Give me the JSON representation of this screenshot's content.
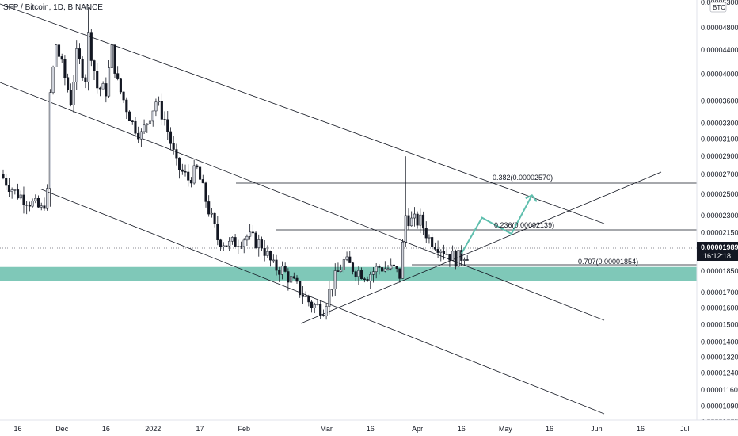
{
  "header": {
    "symbol_title": "SFP / Bitcoin, 1D, BINANCE",
    "currency_badge": "BTC"
  },
  "price_axis": {
    "ticks": [
      "0.00005300",
      "0.00004800",
      "0.00004400",
      "0.00004000",
      "0.00003600",
      "0.00003300",
      "0.00003100",
      "0.00002900",
      "0.00002700",
      "0.00002500",
      "0.00002300",
      "0.00002150",
      "0.00001989",
      "0.00001850",
      "0.00001700",
      "0.00001600",
      "0.00001500",
      "0.00001400",
      "0.00001320",
      "0.00001240",
      "0.00001160",
      "0.00001090",
      "0.00001025"
    ],
    "current_price": "0.00001989",
    "countdown": "16:12:18"
  },
  "time_axis": {
    "ticks": [
      "16",
      "Dec",
      "16",
      "2022",
      "17",
      "Feb",
      "Mar",
      "16",
      "Apr",
      "16",
      "May",
      "16",
      "Jun",
      "16",
      "Jul"
    ]
  },
  "fib_levels": [
    {
      "label": "0.382(0.00002570)",
      "value": 2.57e-05
    },
    {
      "label": "0.236(0.00002139)",
      "value": 2.139e-05
    },
    {
      "label": "0.707(0.00001854)",
      "value": 1.854e-05
    }
  ],
  "colors": {
    "up": "#d1d4dc",
    "down": "#131722",
    "zone": "#7fc8b8",
    "projection": "#5fbfae",
    "price_label_bg": "#131722"
  },
  "chart_data": {
    "type": "candlestick",
    "title": "SFP / Bitcoin, 1D, BINANCE",
    "y_scale": "log",
    "ylim": [
      1e-05,
      5.35e-05
    ],
    "x_range": [
      "2021-11-11",
      "2022-07-05"
    ],
    "support_zone": [
      1.78e-05,
      1.88e-05
    ],
    "fib_levels": [
      2.57e-05,
      2.139e-05,
      1.854e-05
    ],
    "current_price": 1.989e-05,
    "projection_path": [
      {
        "date": "2022-04-16",
        "price": 1.982e-05
      },
      {
        "date": "2022-04-23",
        "price": 2.28e-05
      },
      {
        "date": "2022-05-03",
        "price": 2.14e-05
      },
      {
        "date": "2022-05-10",
        "price": 2.49e-05
      }
    ],
    "grid": false,
    "legend": "none"
  }
}
